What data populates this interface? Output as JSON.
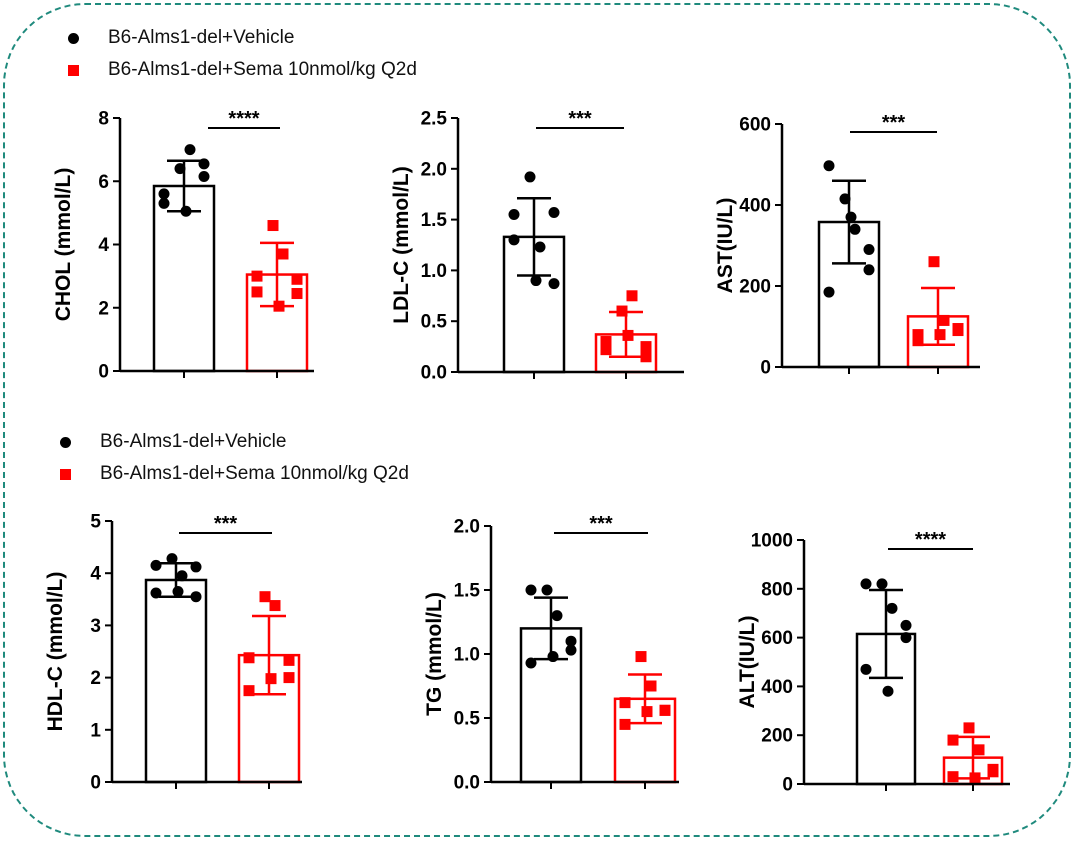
{
  "legend_top": {
    "series": [
      {
        "name": "B6-Alms1-del+Vehicle",
        "color": "#000000",
        "marker": "circle"
      },
      {
        "name": "B6-Alms1-del+Sema 10nmol/kg Q2d",
        "color": "#ff0000",
        "marker": "square"
      }
    ]
  },
  "legend_bottom": {
    "series": [
      {
        "name": "B6-Alms1-del+Vehicle",
        "color": "#000000",
        "marker": "circle"
      },
      {
        "name": "B6-Alms1-del+Sema 10nmol/kg Q2d",
        "color": "#ff0000",
        "marker": "square"
      }
    ]
  },
  "chart_data": [
    {
      "type": "bar",
      "ylabel": "CHOL (mmol/L)",
      "ylim": [
        0,
        8
      ],
      "yticks": [
        "0",
        "2",
        "4",
        "6",
        "8"
      ],
      "significance": "****",
      "series": [
        {
          "name": "B6-Alms1-del+Vehicle",
          "color": "#000000",
          "mean": 5.85,
          "sd": 0.8,
          "points": [
            5.6,
            6.4,
            7.0,
            6.15,
            5.3,
            5.05,
            6.55
          ]
        },
        {
          "name": "B6-Alms1-del+Sema 10nmol/kg Q2d",
          "color": "#ff0000",
          "mean": 3.05,
          "sd": 1.0,
          "points": [
            3.0,
            4.6,
            3.7,
            2.9,
            2.5,
            2.05,
            2.45
          ]
        }
      ]
    },
    {
      "type": "bar",
      "ylabel": "LDL-C (mmol/L)",
      "ylim": [
        0,
        2.5
      ],
      "yticks": [
        "0.0",
        "0.5",
        "1.0",
        "1.5",
        "2.0",
        "2.5"
      ],
      "significance": "***",
      "series": [
        {
          "name": "B6-Alms1-del+Vehicle",
          "color": "#000000",
          "mean": 1.33,
          "sd": 0.38,
          "points": [
            1.55,
            1.92,
            1.23,
            0.87,
            1.3,
            0.9,
            1.57
          ]
        },
        {
          "name": "B6-Alms1-del+Sema 10nmol/kg Q2d",
          "color": "#ff0000",
          "mean": 0.37,
          "sd": 0.22,
          "points": [
            0.3,
            0.6,
            0.75,
            0.15,
            0.22,
            0.36,
            0.25
          ]
        }
      ]
    },
    {
      "type": "bar",
      "ylabel": "AST(IU/L)",
      "ylim": [
        0,
        600
      ],
      "yticks": [
        "0",
        "200",
        "400",
        "600"
      ],
      "significance": "***",
      "series": [
        {
          "name": "B6-Alms1-del+Vehicle",
          "color": "#000000",
          "mean": 358,
          "sd": 102,
          "points": [
            497,
            415,
            340,
            240,
            185,
            370,
            290
          ]
        },
        {
          "name": "B6-Alms1-del+Sema 10nmol/kg Q2d",
          "color": "#ff0000",
          "mean": 125,
          "sd": 70,
          "points": [
            80,
            260,
            115,
            90,
            65,
            80,
            95
          ]
        }
      ]
    },
    {
      "type": "bar",
      "ylabel": "HDL-C (mmol/L)",
      "ylim": [
        0,
        5
      ],
      "yticks": [
        "0",
        "1",
        "2",
        "3",
        "4",
        "5"
      ],
      "significance": "***",
      "series": [
        {
          "name": "B6-Alms1-del+Vehicle",
          "color": "#000000",
          "mean": 3.87,
          "sd": 0.32,
          "points": [
            4.15,
            4.28,
            3.95,
            3.55,
            3.62,
            3.65,
            4.12
          ]
        },
        {
          "name": "B6-Alms1-del+Sema 10nmol/kg Q2d",
          "color": "#ff0000",
          "mean": 2.43,
          "sd": 0.75,
          "points": [
            2.38,
            3.55,
            3.38,
            2.0,
            1.75,
            1.98,
            2.33
          ]
        }
      ]
    },
    {
      "type": "bar",
      "ylabel": "TG (mmol/L)",
      "ylim": [
        0,
        2.0
      ],
      "yticks": [
        "0.0",
        "0.5",
        "1.0",
        "1.5",
        "2.0"
      ],
      "significance": "***",
      "series": [
        {
          "name": "B6-Alms1-del+Vehicle",
          "color": "#000000",
          "mean": 1.2,
          "sd": 0.24,
          "points": [
            1.5,
            1.5,
            1.3,
            1.1,
            0.93,
            0.98,
            1.03
          ]
        },
        {
          "name": "B6-Alms1-del+Sema 10nmol/kg Q2d",
          "color": "#ff0000",
          "mean": 0.65,
          "sd": 0.19,
          "points": [
            0.62,
            0.98,
            0.75,
            0.56,
            0.45,
            0.55,
            0.56
          ]
        }
      ]
    },
    {
      "type": "bar",
      "ylabel": "ALT(IU/L)",
      "ylim": [
        0,
        1000
      ],
      "yticks": [
        "0",
        "200",
        "400",
        "600",
        "800",
        "1000"
      ],
      "significance": "****",
      "series": [
        {
          "name": "B6-Alms1-del+Vehicle",
          "color": "#000000",
          "mean": 615,
          "sd": 180,
          "points": [
            820,
            820,
            720,
            650,
            470,
            380,
            600
          ]
        },
        {
          "name": "B6-Alms1-del+Sema 10nmol/kg Q2d",
          "color": "#ff0000",
          "mean": 108,
          "sd": 85,
          "points": [
            180,
            230,
            140,
            60,
            30,
            25,
            50
          ]
        }
      ]
    }
  ]
}
